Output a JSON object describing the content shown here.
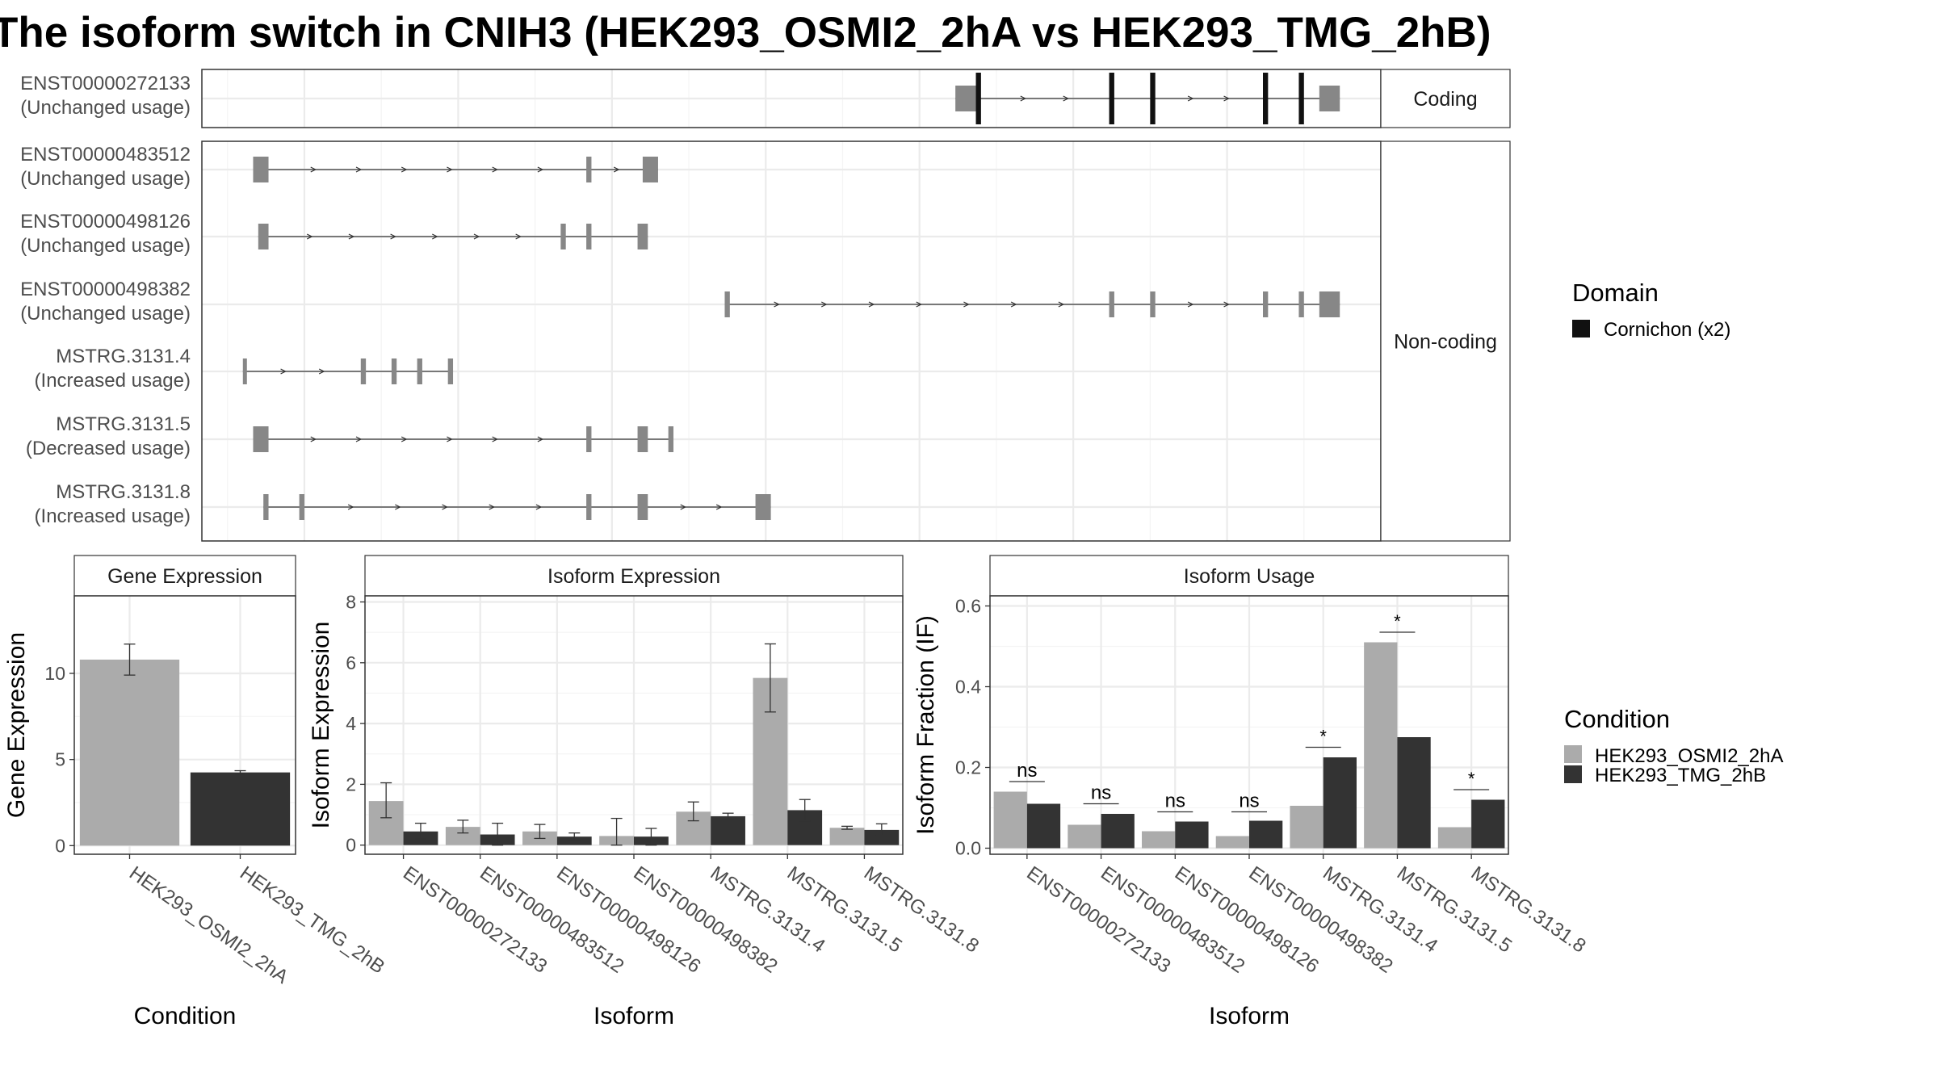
{
  "title": "The isoform switch in CNIH3 (HEK293_OSMI2_2hA vs HEK293_TMG_2hB)",
  "colors": {
    "osmi": "#ababab",
    "tmg": "#333333",
    "exon_noncoding": "#878787",
    "exon_coding": "#111111",
    "grid": "#ebebeb"
  },
  "structure": {
    "facets": {
      "coding": "Coding",
      "noncoding": "Non-coding"
    },
    "transcripts": [
      {
        "id": "ENST00000272133",
        "usage": "(Unchanged usage)",
        "group": "coding",
        "start": 135.7,
        "end": 143.2,
        "exons": [
          [
            135.7,
            136.1,
            "utr"
          ],
          [
            136.1,
            136.2,
            "cds"
          ],
          [
            138.7,
            138.8,
            "cds"
          ],
          [
            139.5,
            139.6,
            "cds"
          ],
          [
            141.7,
            141.8,
            "cds"
          ],
          [
            142.4,
            142.5,
            "cds"
          ],
          [
            142.8,
            143.2,
            "utr"
          ]
        ]
      },
      {
        "id": "ENST00000483512",
        "usage": "(Unchanged usage)",
        "group": "noncoding",
        "start": 122.0,
        "end": 129.9,
        "exons": [
          [
            122.0,
            122.3
          ],
          [
            128.5,
            128.6
          ],
          [
            129.6,
            129.9
          ]
        ]
      },
      {
        "id": "ENST00000498126",
        "usage": "(Unchanged usage)",
        "group": "noncoding",
        "start": 122.1,
        "end": 129.7,
        "exons": [
          [
            122.1,
            122.3
          ],
          [
            128.0,
            128.1
          ],
          [
            128.5,
            128.6
          ],
          [
            129.5,
            129.7
          ]
        ]
      },
      {
        "id": "ENST00000498382",
        "usage": "(Unchanged usage)",
        "group": "noncoding",
        "start": 131.2,
        "end": 143.2,
        "exons": [
          [
            131.2,
            131.3
          ],
          [
            138.7,
            138.8
          ],
          [
            139.5,
            139.6
          ],
          [
            141.7,
            141.8
          ],
          [
            142.4,
            142.5
          ],
          [
            142.8,
            143.2
          ]
        ]
      },
      {
        "id": "MSTRG.3131.4",
        "usage": "(Increased usage)",
        "group": "noncoding",
        "start": 121.8,
        "end": 125.9,
        "exons": [
          [
            121.8,
            121.85
          ],
          [
            124.1,
            124.2
          ],
          [
            124.7,
            124.8
          ],
          [
            125.2,
            125.3
          ],
          [
            125.8,
            125.9
          ]
        ]
      },
      {
        "id": "MSTRG.3131.5",
        "usage": "(Decreased usage)",
        "group": "noncoding",
        "start": 122.0,
        "end": 130.2,
        "exons": [
          [
            122.0,
            122.3
          ],
          [
            128.5,
            128.6
          ],
          [
            129.5,
            129.7
          ],
          [
            130.1,
            130.2
          ]
        ]
      },
      {
        "id": "MSTRG.3131.8",
        "usage": "(Increased usage)",
        "group": "noncoding",
        "start": 122.2,
        "end": 132.1,
        "exons": [
          [
            122.2,
            122.3
          ],
          [
            122.9,
            123.0
          ],
          [
            128.5,
            128.6
          ],
          [
            129.5,
            129.7
          ],
          [
            131.8,
            132.1
          ]
        ]
      }
    ],
    "x_range": [
      121,
      144
    ]
  },
  "legend_domain": {
    "title": "Domain",
    "items": [
      "Cornichon (x2)"
    ]
  },
  "legend_condition": {
    "title": "Condition",
    "items": [
      "HEK293_OSMI2_2hA",
      "HEK293_TMG_2hB"
    ]
  },
  "chart_data": [
    {
      "type": "bar",
      "title": "Gene Expression",
      "xlabel": "Condition",
      "ylabel": "Gene Expression",
      "categories": [
        "HEK293_OSMI2_2hA",
        "HEK293_TMG_2hB"
      ],
      "values": [
        10.8,
        4.25
      ],
      "errors": [
        [
          9.9,
          11.7
        ],
        [
          4.15,
          4.35
        ]
      ],
      "ylim": [
        -0.5,
        14.5
      ],
      "yticks": [
        0,
        5,
        10
      ],
      "grid": true
    },
    {
      "type": "bar",
      "title": "Isoform Expression",
      "xlabel": "Isoform",
      "ylabel": "Isoform Expression",
      "categories": [
        "ENST00000272133",
        "ENST00000483512",
        "ENST00000498126",
        "ENST00000498382",
        "MSTRG.3131.4",
        "MSTRG.3131.5",
        "MSTRG.3131.8"
      ],
      "series": [
        {
          "name": "HEK293_OSMI2_2hA",
          "values": [
            1.45,
            0.6,
            0.45,
            0.3,
            1.1,
            5.5,
            0.57
          ],
          "errors": [
            [
              0.9,
              2.05
            ],
            [
              0.4,
              0.82
            ],
            [
              0.22,
              0.68
            ],
            [
              0.0,
              0.88
            ],
            [
              0.8,
              1.42
            ],
            [
              4.38,
              6.62
            ],
            [
              0.52,
              0.62
            ]
          ]
        },
        {
          "name": "HEK293_TMG_2hB",
          "values": [
            0.45,
            0.35,
            0.28,
            0.28,
            0.95,
            1.15,
            0.5
          ],
          "errors": [
            [
              0.2,
              0.72
            ],
            [
              0.0,
              0.72
            ],
            [
              0.15,
              0.4
            ],
            [
              0.0,
              0.55
            ],
            [
              0.85,
              1.05
            ],
            [
              0.8,
              1.5
            ],
            [
              0.32,
              0.7
            ]
          ]
        }
      ],
      "ylim": [
        -0.3,
        8.2
      ],
      "yticks": [
        0,
        2,
        4,
        6,
        8
      ],
      "grid": true
    },
    {
      "type": "bar",
      "title": "Isoform Usage",
      "xlabel": "Isoform",
      "ylabel": "Isoform Fraction (IF)",
      "categories": [
        "ENST00000272133",
        "ENST00000483512",
        "ENST00000498126",
        "ENST00000498382",
        "MSTRG.3131.4",
        "MSTRG.3131.5",
        "MSTRG.3131.8"
      ],
      "series": [
        {
          "name": "HEK293_OSMI2_2hA",
          "values": [
            0.14,
            0.058,
            0.042,
            0.03,
            0.105,
            0.51,
            0.052
          ]
        },
        {
          "name": "HEK293_TMG_2hB",
          "values": [
            0.11,
            0.085,
            0.066,
            0.068,
            0.225,
            0.275,
            0.12
          ]
        }
      ],
      "significance": [
        "ns",
        "ns",
        "ns",
        "ns",
        "*",
        "*",
        "*"
      ],
      "significance_y": [
        0.165,
        0.11,
        0.09,
        0.09,
        0.25,
        0.535,
        0.145
      ],
      "ylim": [
        -0.015,
        0.625
      ],
      "yticks": [
        0.0,
        0.2,
        0.4,
        0.6
      ],
      "ytick_labels": [
        "0.0",
        "0.2",
        "0.4",
        "0.6"
      ],
      "grid": true
    }
  ]
}
